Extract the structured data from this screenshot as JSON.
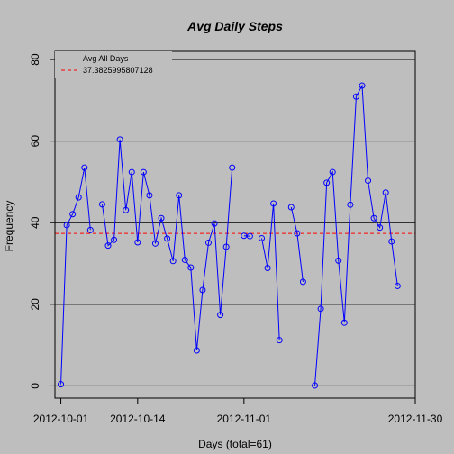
{
  "chart_data": {
    "type": "line",
    "title": "Avg Daily Steps",
    "xlabel": "Days (total=61)",
    "ylabel": "Frequency",
    "xlim": [
      "2012-09-30",
      "2012-11-30"
    ],
    "ylim": [
      -3,
      82
    ],
    "x_ticks": [
      "2012-10-01",
      "2012-10-14",
      "2012-11-01",
      "2012-11-30"
    ],
    "y_ticks": [
      0,
      20,
      40,
      60,
      80
    ],
    "grid": "horizontal",
    "legend": {
      "placement": "top-left",
      "entries": [
        {
          "label": "Avg All Days",
          "style": "none"
        },
        {
          "label": "37.3825995807128",
          "style": "dashed",
          "color": "#ff0000"
        }
      ]
    },
    "reference_line": {
      "y": 37.3825995807128,
      "color": "#ff0000",
      "style": "dashed"
    },
    "series": [
      {
        "color": "#0000ff",
        "marker": "open-circle",
        "points": [
          [
            "2012-10-01",
            0.4
          ],
          [
            "2012-10-02",
            39.4
          ],
          [
            "2012-10-03",
            42.1
          ],
          [
            "2012-10-04",
            46.2
          ],
          [
            "2012-10-05",
            53.5
          ],
          [
            "2012-10-06",
            38.2
          ],
          [
            "2012-10-07",
            null
          ],
          [
            "2012-10-08",
            44.5
          ],
          [
            "2012-10-09",
            34.4
          ],
          [
            "2012-10-10",
            35.8
          ],
          [
            "2012-10-11",
            60.4
          ],
          [
            "2012-10-12",
            43.1
          ],
          [
            "2012-10-13",
            52.4
          ],
          [
            "2012-10-14",
            35.2
          ],
          [
            "2012-10-15",
            52.4
          ],
          [
            "2012-10-16",
            46.7
          ],
          [
            "2012-10-17",
            34.9
          ],
          [
            "2012-10-18",
            41.1
          ],
          [
            "2012-10-19",
            36.1
          ],
          [
            "2012-10-20",
            30.6
          ],
          [
            "2012-10-21",
            46.7
          ],
          [
            "2012-10-22",
            30.9
          ],
          [
            "2012-10-23",
            29.0
          ],
          [
            "2012-10-24",
            8.7
          ],
          [
            "2012-10-25",
            23.5
          ],
          [
            "2012-10-26",
            35.1
          ],
          [
            "2012-10-27",
            39.8
          ],
          [
            "2012-10-28",
            17.4
          ],
          [
            "2012-10-29",
            34.1
          ],
          [
            "2012-10-30",
            53.5
          ],
          [
            "2012-10-31",
            null
          ],
          [
            "2012-11-01",
            36.8
          ],
          [
            "2012-11-02",
            36.7
          ],
          [
            "2012-11-03",
            null
          ],
          [
            "2012-11-04",
            36.2
          ],
          [
            "2012-11-05",
            28.9
          ],
          [
            "2012-11-06",
            44.7
          ],
          [
            "2012-11-07",
            11.2
          ],
          [
            "2012-11-08",
            null
          ],
          [
            "2012-11-09",
            43.8
          ],
          [
            "2012-11-10",
            37.4
          ],
          [
            "2012-11-11",
            25.5
          ],
          [
            "2012-11-12",
            null
          ],
          [
            "2012-11-13",
            0.1
          ],
          [
            "2012-11-14",
            18.9
          ],
          [
            "2012-11-15",
            49.8
          ],
          [
            "2012-11-16",
            52.4
          ],
          [
            "2012-11-17",
            30.7
          ],
          [
            "2012-11-18",
            15.5
          ],
          [
            "2012-11-19",
            44.4
          ],
          [
            "2012-11-20",
            70.9
          ],
          [
            "2012-11-21",
            73.6
          ],
          [
            "2012-11-22",
            50.3
          ],
          [
            "2012-11-23",
            41.1
          ],
          [
            "2012-11-24",
            38.8
          ],
          [
            "2012-11-25",
            47.4
          ],
          [
            "2012-11-26",
            35.4
          ],
          [
            "2012-11-27",
            24.5
          ]
        ]
      }
    ]
  }
}
